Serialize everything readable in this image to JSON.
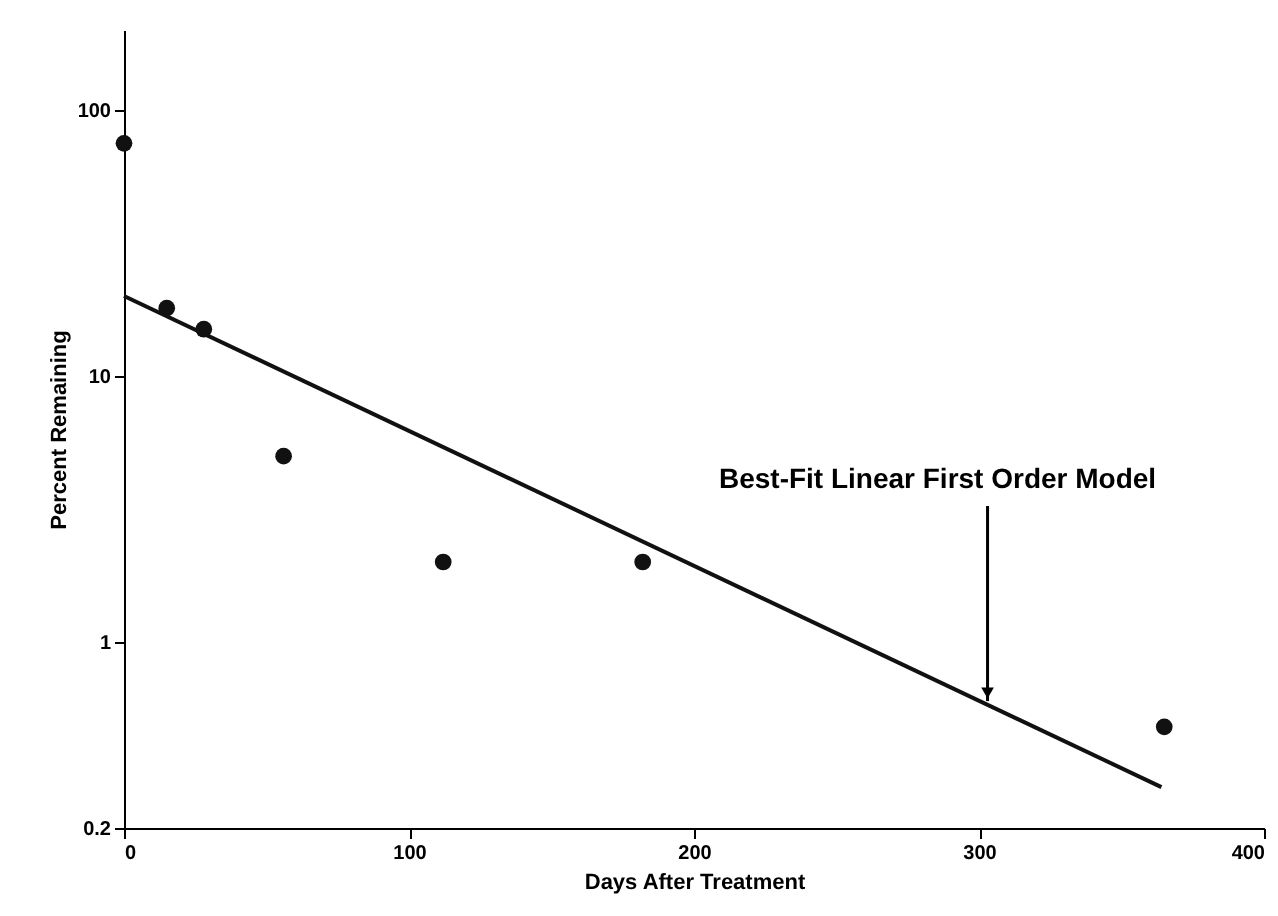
{
  "chart_data": {
    "type": "scatter",
    "xlabel": "Days After Treatment",
    "ylabel": "Percent Remaining",
    "log": "y",
    "grid": false,
    "marker": "circle",
    "x": [
      0,
      15,
      28,
      56,
      112,
      182,
      365
    ],
    "series": [
      {
        "color": "#111111",
        "values": [
          75,
          18,
          15,
          5,
          2,
          2,
          0.48
        ]
      },
      {
        "type": "line",
        "color": "#111111",
        "x": [
          0,
          364
        ],
        "values": [
          20,
          0.285
        ],
        "line_style": "solid",
        "marker": "none"
      }
    ],
    "xlim": [
      0,
      400
    ],
    "xticks": [
      0,
      100,
      200,
      300,
      400
    ],
    "ylim": [
      0.2,
      200
    ],
    "yticks": [
      0.2,
      1,
      10,
      100
    ],
    "annotations": [
      {
        "text": "Best-Fit Linear First Order Model",
        "x": 303,
        "y": 0.6
      }
    ]
  }
}
